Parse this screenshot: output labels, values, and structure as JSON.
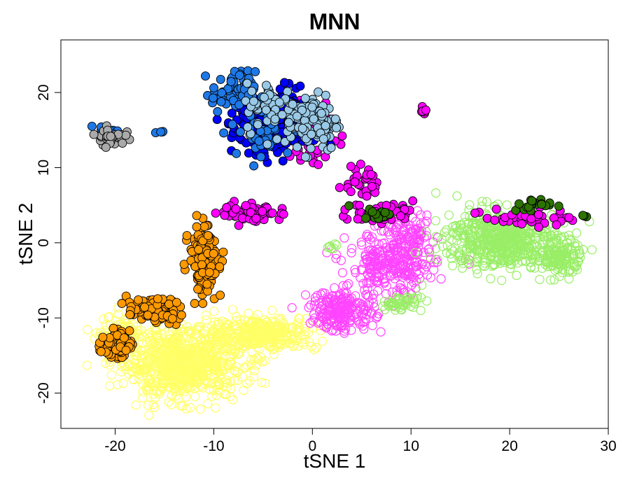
{
  "chart_data": {
    "type": "scatter",
    "title": "MNN",
    "xlabel": "tSNE 1",
    "ylabel": "tSNE 2",
    "xlim": [
      -25.5,
      30
    ],
    "ylim": [
      -24.7,
      27
    ],
    "xticks": [
      -20,
      -10,
      0,
      10,
      20,
      30
    ],
    "yticks": [
      -20,
      -10,
      0,
      10,
      20
    ],
    "grid": false,
    "legend": "none",
    "colors": {
      "yellow": "#ffff66",
      "magenta": "#ff44ff",
      "lightgreen": "#99ee66",
      "orange": "#ff9900",
      "magenta_filled": "#ff00ff",
      "blue": "#0000ff",
      "dodgerblue": "#1e78e6",
      "lightblue": "#99c9e6",
      "darkgreen": "#2d7300",
      "gray": "#aaaaaa"
    },
    "series": [
      {
        "style": "open",
        "color": "#ffff66",
        "clusters": [
          {
            "center": [
              -13,
              -16
            ],
            "spread": [
              5.5,
              4.2
            ],
            "n": 750
          },
          {
            "center": [
              -5,
              -12
            ],
            "spread": [
              5,
              2
            ],
            "n": 300
          },
          {
            "center": [
              -19.5,
              -13
            ],
            "spread": [
              2,
              3
            ],
            "n": 120
          }
        ]
      },
      {
        "style": "open",
        "color": "#ff44ff",
        "clusters": [
          {
            "center": [
              8,
              -3
            ],
            "spread": [
              4,
              4
            ],
            "n": 280
          },
          {
            "center": [
              3,
              -9
            ],
            "spread": [
              3,
              2.5
            ],
            "n": 200
          },
          {
            "center": [
              10,
              1
            ],
            "spread": [
              2,
              2
            ],
            "n": 60
          }
        ]
      },
      {
        "style": "open",
        "color": "#99ee66",
        "clusters": [
          {
            "center": [
              19,
              0.5
            ],
            "spread": [
              5,
              3.5
            ],
            "n": 520
          },
          {
            "center": [
              25,
              -2
            ],
            "spread": [
              2.2,
              2.2
            ],
            "n": 140
          },
          {
            "center": [
              9,
              -8
            ],
            "spread": [
              2,
              1
            ],
            "n": 50
          },
          {
            "center": [
              2,
              -0.5
            ],
            "spread": [
              0.7,
              0.5
            ],
            "n": 8
          }
        ]
      },
      {
        "style": "filled",
        "color": "#ff9900",
        "clusters": [
          {
            "center": [
              -11,
              -2
            ],
            "spread": [
              1.3,
              4
            ],
            "n": 140
          },
          {
            "center": [
              -16,
              -9
            ],
            "spread": [
              2.5,
              1.5
            ],
            "n": 90
          },
          {
            "center": [
              -20,
              -13.5
            ],
            "spread": [
              1.3,
              1.5
            ],
            "n": 90
          }
        ]
      },
      {
        "style": "filled",
        "color": "#ff00ff",
        "clusters": [
          {
            "center": [
              -6,
              4
            ],
            "spread": [
              3,
              1.2
            ],
            "n": 60
          },
          {
            "center": [
              7,
              4
            ],
            "spread": [
              3,
              1.2
            ],
            "n": 60
          },
          {
            "center": [
              5,
              8
            ],
            "spread": [
              1.5,
              1.8
            ],
            "n": 25
          },
          {
            "center": [
              22,
              3.5
            ],
            "spread": [
              4,
              1.2
            ],
            "n": 40
          },
          {
            "center": [
              0,
              14
            ],
            "spread": [
              3,
              4
            ],
            "n": 50
          },
          {
            "center": [
              11.3,
              17.5
            ],
            "spread": [
              0.3,
              0.6
            ],
            "n": 6
          }
        ]
      },
      {
        "style": "filled",
        "color": "#0000ff",
        "clusters": [
          {
            "center": [
              -4,
              16
            ],
            "spread": [
              3.5,
              4
            ],
            "n": 260
          }
        ]
      },
      {
        "style": "filled",
        "color": "#1e78e6",
        "clusters": [
          {
            "center": [
              -8,
              20
            ],
            "spread": [
              2,
              2.5
            ],
            "n": 70
          },
          {
            "center": [
              -5,
              15
            ],
            "spread": [
              3,
              4
            ],
            "n": 40
          },
          {
            "center": [
              -21,
              15
            ],
            "spread": [
              1,
              0.5
            ],
            "n": 8
          },
          {
            "center": [
              -15.5,
              14.8
            ],
            "spread": [
              0.5,
              0.2
            ],
            "n": 4
          }
        ]
      },
      {
        "style": "filled",
        "color": "#99c9e6",
        "clusters": [
          {
            "center": [
              0,
              16
            ],
            "spread": [
              2.5,
              3.5
            ],
            "n": 110
          },
          {
            "center": [
              -4,
              18
            ],
            "spread": [
              2.5,
              3
            ],
            "n": 60
          }
        ]
      },
      {
        "style": "filled",
        "color": "#2d7300",
        "clusters": [
          {
            "center": [
              6.5,
              4
            ],
            "spread": [
              1.5,
              0.8
            ],
            "n": 15
          },
          {
            "center": [
              23,
              5
            ],
            "spread": [
              2.5,
              0.8
            ],
            "n": 20
          },
          {
            "center": [
              27.5,
              3.5
            ],
            "spread": [
              0.3,
              0.3
            ],
            "n": 3
          }
        ]
      },
      {
        "style": "filled",
        "color": "#aaaaaa",
        "clusters": [
          {
            "center": [
              -20.5,
              14.2
            ],
            "spread": [
              1.3,
              1
            ],
            "n": 45
          }
        ]
      }
    ]
  }
}
